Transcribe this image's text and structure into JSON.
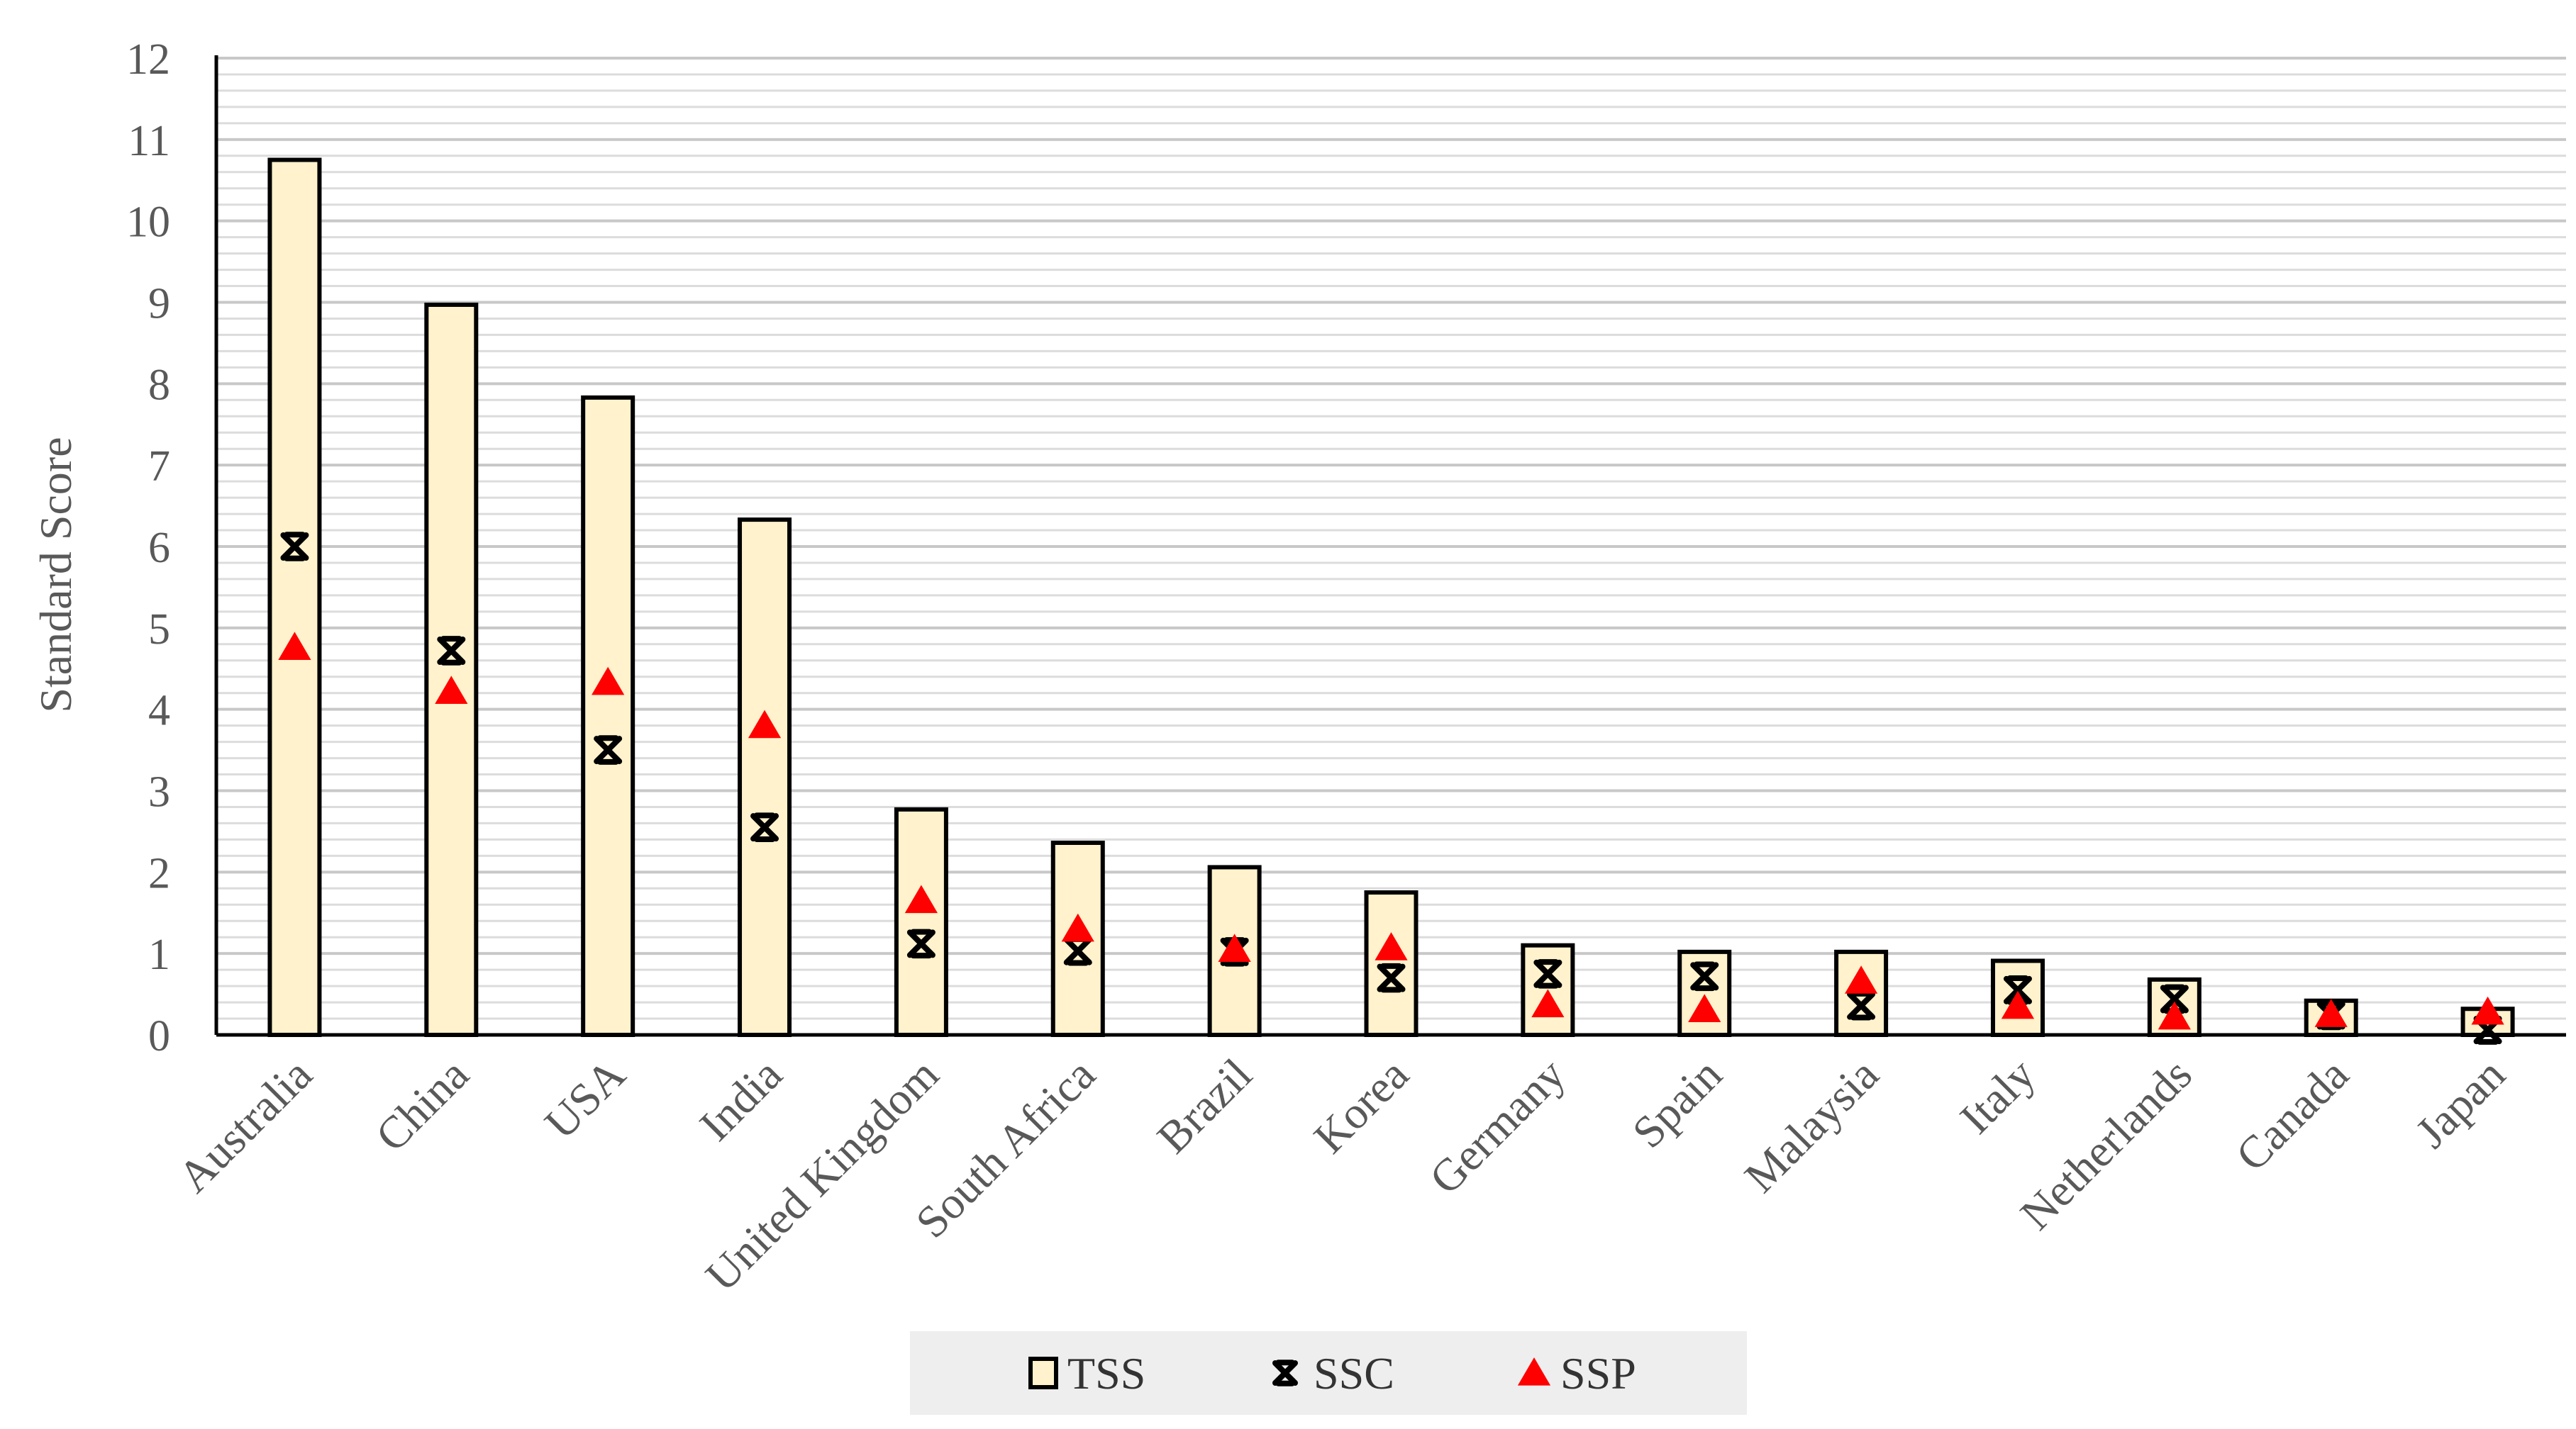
{
  "chart_data": {
    "type": "bar",
    "ylabel": "Standard Score",
    "xlabel": "",
    "ylim": [
      0,
      12
    ],
    "yticks": [
      0,
      1,
      2,
      3,
      4,
      5,
      6,
      7,
      8,
      9,
      10,
      11,
      12
    ],
    "grid": "horizontal lines every 0.2",
    "legend_position": "bottom-center",
    "categories": [
      "Australia",
      "China",
      "USA",
      "India",
      "United Kingdom",
      "South Africa",
      "Brazil",
      "Korea",
      "Germany",
      "Spain",
      "Malaysia",
      "Italy",
      "Netherlands",
      "Canada",
      "Japan"
    ],
    "series": [
      {
        "name": "TSS",
        "kind": "bar",
        "color": "#FFF2CC",
        "edge": "#000000",
        "values": [
          10.75,
          8.97,
          7.83,
          6.33,
          2.77,
          2.36,
          2.06,
          1.75,
          1.1,
          1.02,
          1.02,
          0.91,
          0.68,
          0.42,
          0.32
        ]
      },
      {
        "name": "SSC",
        "kind": "marker",
        "marker": "asterisk",
        "color": "#000000",
        "values": [
          6.0,
          4.72,
          3.5,
          2.55,
          1.12,
          1.03,
          1.02,
          0.7,
          0.75,
          0.72,
          0.36,
          0.55,
          0.44,
          0.24,
          0.06
        ]
      },
      {
        "name": "SSP",
        "kind": "marker",
        "marker": "triangle",
        "color": "#FF0000",
        "values": [
          4.76,
          4.22,
          4.33,
          3.8,
          1.65,
          1.3,
          1.05,
          1.07,
          0.37,
          0.31,
          0.66,
          0.35,
          0.22,
          0.25,
          0.28
        ]
      }
    ]
  }
}
